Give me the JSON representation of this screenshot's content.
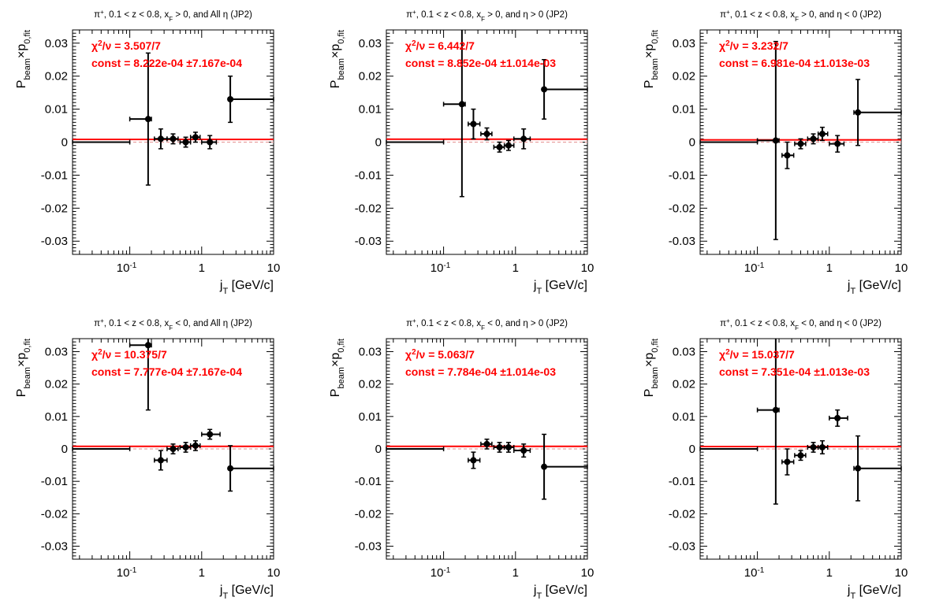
{
  "chart_data": [
    {
      "type": "scatter",
      "title": "π⁺, 0.1 < z < 0.8, x F > 0, and All η (JP2)",
      "title_parts": [
        "π",
        "+",
        ", 0.1 < z < 0.8, x",
        "F",
        " > 0, and All  η (JP2)"
      ],
      "xlabel": [
        "j",
        "T",
        " [GeV/c]"
      ],
      "ylabel": [
        "P",
        "beam",
        "×p",
        "0,fit"
      ],
      "xscale": "log",
      "xlim": [
        0.016,
        10
      ],
      "ylim": [
        -0.034,
        0.034
      ],
      "x_ticks": [
        "10",
        "-1",
        "1",
        "10"
      ],
      "y_ticks": [
        "0.03",
        "0.02",
        "0.01",
        "0",
        "-0.01",
        "-0.02",
        "-0.03"
      ],
      "chi2_label": "χ²/ν = 3.507/7",
      "chi2_parts": [
        "χ",
        "2",
        "/ν = 3.507/7"
      ],
      "const_label": "const = 8.222e-04  ±7.167e-04",
      "fit_const": 0.0008222,
      "points": [
        {
          "x": 0.02,
          "xlo": 0.0,
          "xhi": 0.1,
          "y": 0.0,
          "ey": 0.0
        },
        {
          "x": 0.18,
          "xlo": 0.1,
          "xhi": 0.2,
          "y": 0.007,
          "ey": 0.02
        },
        {
          "x": 0.27,
          "xlo": 0.22,
          "xhi": 0.33,
          "y": 0.001,
          "ey": 0.003
        },
        {
          "x": 0.4,
          "xlo": 0.33,
          "xhi": 0.47,
          "y": 0.001,
          "ey": 0.0015
        },
        {
          "x": 0.6,
          "xlo": 0.5,
          "xhi": 0.7,
          "y": 0.0,
          "ey": 0.0015
        },
        {
          "x": 0.82,
          "xlo": 0.7,
          "xhi": 0.95,
          "y": 0.0015,
          "ey": 0.0015
        },
        {
          "x": 1.3,
          "xlo": 1.0,
          "xhi": 1.6,
          "y": 0.0,
          "ey": 0.002
        },
        {
          "x": 2.5,
          "xlo": 2.5,
          "xhi": 10.0,
          "y": 0.013,
          "ey": 0.007
        }
      ]
    },
    {
      "type": "scatter",
      "title": "π⁺, 0.1 < z < 0.8, x F > 0, and η > 0 (JP2)",
      "title_parts": [
        "π",
        "+",
        ", 0.1 < z < 0.8, x",
        "F",
        " > 0, and  η > 0 (JP2)"
      ],
      "xlabel": [
        "j",
        "T",
        " [GeV/c]"
      ],
      "ylabel": [
        "P",
        "beam",
        "×p",
        "0,fit"
      ],
      "xscale": "log",
      "xlim": [
        0.016,
        10
      ],
      "ylim": [
        -0.034,
        0.034
      ],
      "x_ticks": [
        "10",
        "-1",
        "1",
        "10"
      ],
      "y_ticks": [
        "0.03",
        "0.02",
        "0.01",
        "0",
        "-0.01",
        "-0.02",
        "-0.03"
      ],
      "chi2_label": "χ²/ν = 6.442/7",
      "chi2_parts": [
        "χ",
        "2",
        "/ν = 6.442/7"
      ],
      "const_label": "const = 8.852e-04  ±1.014e-03",
      "fit_const": 0.0008852,
      "points": [
        {
          "x": 0.02,
          "xlo": 0.0,
          "xhi": 0.1,
          "y": 0.0,
          "ey": 0.0
        },
        {
          "x": 0.18,
          "xlo": 0.1,
          "xhi": 0.2,
          "y": 0.0115,
          "ey": 0.028
        },
        {
          "x": 0.26,
          "xlo": 0.22,
          "xhi": 0.32,
          "y": 0.0055,
          "ey": 0.0045
        },
        {
          "x": 0.4,
          "xlo": 0.33,
          "xhi": 0.47,
          "y": 0.0025,
          "ey": 0.0018
        },
        {
          "x": 0.6,
          "xlo": 0.5,
          "xhi": 0.7,
          "y": -0.0015,
          "ey": 0.0015
        },
        {
          "x": 0.8,
          "xlo": 0.7,
          "xhi": 0.95,
          "y": -0.001,
          "ey": 0.0015
        },
        {
          "x": 1.3,
          "xlo": 0.95,
          "xhi": 1.6,
          "y": 0.001,
          "ey": 0.003
        },
        {
          "x": 2.5,
          "xlo": 2.5,
          "xhi": 10.0,
          "y": 0.016,
          "ey": 0.009
        }
      ]
    },
    {
      "type": "scatter",
      "title": "π⁺, 0.1 < z < 0.8, x F > 0, and η < 0 (JP2)",
      "title_parts": [
        "π",
        "+",
        ", 0.1 < z < 0.8, x",
        "F",
        " > 0, and  η < 0 (JP2)"
      ],
      "xlabel": [
        "j",
        "T",
        " [GeV/c]"
      ],
      "ylabel": [
        "P",
        "beam",
        "×p",
        "0,fit"
      ],
      "xscale": "log",
      "xlim": [
        0.016,
        10
      ],
      "ylim": [
        -0.034,
        0.034
      ],
      "x_ticks": [
        "10",
        "-1",
        "1",
        "10"
      ],
      "y_ticks": [
        "0.03",
        "0.02",
        "0.01",
        "0",
        "-0.01",
        "-0.02",
        "-0.03"
      ],
      "chi2_label": "χ²/ν = 3.232/7",
      "chi2_parts": [
        "χ",
        "2",
        "/ν = 3.232/7"
      ],
      "const_label": "const = 6.981e-04  ±1.013e-03",
      "fit_const": 0.0006981,
      "points": [
        {
          "x": 0.02,
          "xlo": 0.0,
          "xhi": 0.1,
          "y": 0.0,
          "ey": 0.0
        },
        {
          "x": 0.18,
          "xlo": 0.1,
          "xhi": 0.2,
          "y": 0.0005,
          "ey": 0.03
        },
        {
          "x": 0.26,
          "xlo": 0.22,
          "xhi": 0.32,
          "y": -0.004,
          "ey": 0.004
        },
        {
          "x": 0.4,
          "xlo": 0.33,
          "xhi": 0.47,
          "y": -0.0005,
          "ey": 0.0015
        },
        {
          "x": 0.6,
          "xlo": 0.5,
          "xhi": 0.7,
          "y": 0.001,
          "ey": 0.0015
        },
        {
          "x": 0.8,
          "xlo": 0.7,
          "xhi": 0.95,
          "y": 0.0025,
          "ey": 0.002
        },
        {
          "x": 1.3,
          "xlo": 1.0,
          "xhi": 1.6,
          "y": -0.0005,
          "ey": 0.0025
        },
        {
          "x": 2.5,
          "xlo": 2.2,
          "xhi": 10.0,
          "y": 0.009,
          "ey": 0.01
        }
      ]
    },
    {
      "type": "scatter",
      "title": "π⁺, 0.1 < z < 0.8, x F < 0, and All η (JP2)",
      "title_parts": [
        "π",
        "+",
        ", 0.1 < z < 0.8, x",
        "F",
        " < 0, and All  η (JP2)"
      ],
      "xlabel": [
        "j",
        "T",
        " [GeV/c]"
      ],
      "ylabel": [
        "P",
        "beam",
        "×p",
        "0,fit"
      ],
      "xscale": "log",
      "xlim": [
        0.016,
        10
      ],
      "ylim": [
        -0.034,
        0.034
      ],
      "x_ticks": [
        "10",
        "-1",
        "1",
        "10"
      ],
      "y_ticks": [
        "0.03",
        "0.02",
        "0.01",
        "0",
        "-0.01",
        "-0.02",
        "-0.03"
      ],
      "chi2_label": "χ²/ν = 10.375/7",
      "chi2_parts": [
        "χ",
        "2",
        "/ν = 10.375/7"
      ],
      "const_label": "const = 7.777e-04  ±7.167e-04",
      "fit_const": 0.0007777,
      "points": [
        {
          "x": 0.02,
          "xlo": 0.0,
          "xhi": 0.1,
          "y": 0.0,
          "ey": 0.0
        },
        {
          "x": 0.18,
          "xlo": 0.1,
          "xhi": 0.2,
          "y": 0.032,
          "ey": 0.02
        },
        {
          "x": 0.27,
          "xlo": 0.22,
          "xhi": 0.33,
          "y": -0.0035,
          "ey": 0.003
        },
        {
          "x": 0.4,
          "xlo": 0.33,
          "xhi": 0.47,
          "y": 0.0,
          "ey": 0.0015
        },
        {
          "x": 0.6,
          "xlo": 0.5,
          "xhi": 0.7,
          "y": 0.0005,
          "ey": 0.0015
        },
        {
          "x": 0.82,
          "xlo": 0.7,
          "xhi": 0.95,
          "y": 0.001,
          "ey": 0.0015
        },
        {
          "x": 1.3,
          "xlo": 1.0,
          "xhi": 1.8,
          "y": 0.0045,
          "ey": 0.0015
        },
        {
          "x": 2.5,
          "xlo": 2.5,
          "xhi": 10.0,
          "y": -0.006,
          "ey": 0.007
        }
      ]
    },
    {
      "type": "scatter",
      "title": "π⁺, 0.1 < z < 0.8, x F < 0, and η > 0 (JP2)",
      "title_parts": [
        "π",
        "+",
        ", 0.1 < z < 0.8, x",
        "F",
        " < 0, and  η > 0 (JP2)"
      ],
      "xlabel": [
        "j",
        "T",
        " [GeV/c]"
      ],
      "ylabel": [
        "P",
        "beam",
        "×p",
        "0,fit"
      ],
      "xscale": "log",
      "xlim": [
        0.016,
        10
      ],
      "ylim": [
        -0.034,
        0.034
      ],
      "x_ticks": [
        "10",
        "-1",
        "1",
        "10"
      ],
      "y_ticks": [
        "0.03",
        "0.02",
        "0.01",
        "0",
        "-0.01",
        "-0.02",
        "-0.03"
      ],
      "chi2_label": "χ²/ν = 5.063/7",
      "chi2_parts": [
        "χ",
        "2",
        "/ν = 5.063/7"
      ],
      "const_label": "const = 7.784e-04  ±1.014e-03",
      "fit_const": 0.0007784,
      "points": [
        {
          "x": 0.02,
          "xlo": 0.0,
          "xhi": 0.1,
          "y": 0.0,
          "ey": 0.0
        },
        {
          "x": 0.26,
          "xlo": 0.22,
          "xhi": 0.32,
          "y": -0.0035,
          "ey": 0.0025
        },
        {
          "x": 0.4,
          "xlo": 0.33,
          "xhi": 0.47,
          "y": 0.0015,
          "ey": 0.0015
        },
        {
          "x": 0.6,
          "xlo": 0.5,
          "xhi": 0.7,
          "y": 0.0005,
          "ey": 0.0015
        },
        {
          "x": 0.8,
          "xlo": 0.7,
          "xhi": 0.95,
          "y": 0.0005,
          "ey": 0.0015
        },
        {
          "x": 1.3,
          "xlo": 0.95,
          "xhi": 1.6,
          "y": -0.0005,
          "ey": 0.002
        },
        {
          "x": 2.5,
          "xlo": 2.5,
          "xhi": 10.0,
          "y": -0.0055,
          "ey": 0.01
        }
      ]
    },
    {
      "type": "scatter",
      "title": "π⁺, 0.1 < z < 0.8, x F < 0, and η < 0 (JP2)",
      "title_parts": [
        "π",
        "+",
        ", 0.1 < z < 0.8, x",
        "F",
        " < 0, and  η < 0 (JP2)"
      ],
      "xlabel": [
        "j",
        "T",
        " [GeV/c]"
      ],
      "ylabel": [
        "P",
        "beam",
        "×p",
        "0,fit"
      ],
      "xscale": "log",
      "xlim": [
        0.016,
        10
      ],
      "ylim": [
        -0.034,
        0.034
      ],
      "x_ticks": [
        "10",
        "-1",
        "1",
        "10"
      ],
      "y_ticks": [
        "0.03",
        "0.02",
        "0.01",
        "0",
        "-0.01",
        "-0.02",
        "-0.03"
      ],
      "chi2_label": "χ²/ν = 15.037/7",
      "chi2_parts": [
        "χ",
        "2",
        "/ν = 15.037/7"
      ],
      "const_label": "const = 7.351e-04  ±1.013e-03",
      "fit_const": 0.0007351,
      "points": [
        {
          "x": 0.02,
          "xlo": 0.0,
          "xhi": 0.1,
          "y": 0.0,
          "ey": 0.0
        },
        {
          "x": 0.18,
          "xlo": 0.1,
          "xhi": 0.2,
          "y": 0.012,
          "ey": 0.029
        },
        {
          "x": 0.26,
          "xlo": 0.22,
          "xhi": 0.32,
          "y": -0.004,
          "ey": 0.004
        },
        {
          "x": 0.4,
          "xlo": 0.33,
          "xhi": 0.47,
          "y": -0.002,
          "ey": 0.0015
        },
        {
          "x": 0.6,
          "xlo": 0.5,
          "xhi": 0.7,
          "y": 0.0005,
          "ey": 0.0015
        },
        {
          "x": 0.8,
          "xlo": 0.7,
          "xhi": 0.95,
          "y": 0.0005,
          "ey": 0.002
        },
        {
          "x": 1.3,
          "xlo": 1.0,
          "xhi": 1.8,
          "y": 0.0095,
          "ey": 0.0025
        },
        {
          "x": 2.5,
          "xlo": 2.2,
          "xhi": 10.0,
          "y": -0.006,
          "ey": 0.01
        }
      ]
    }
  ]
}
